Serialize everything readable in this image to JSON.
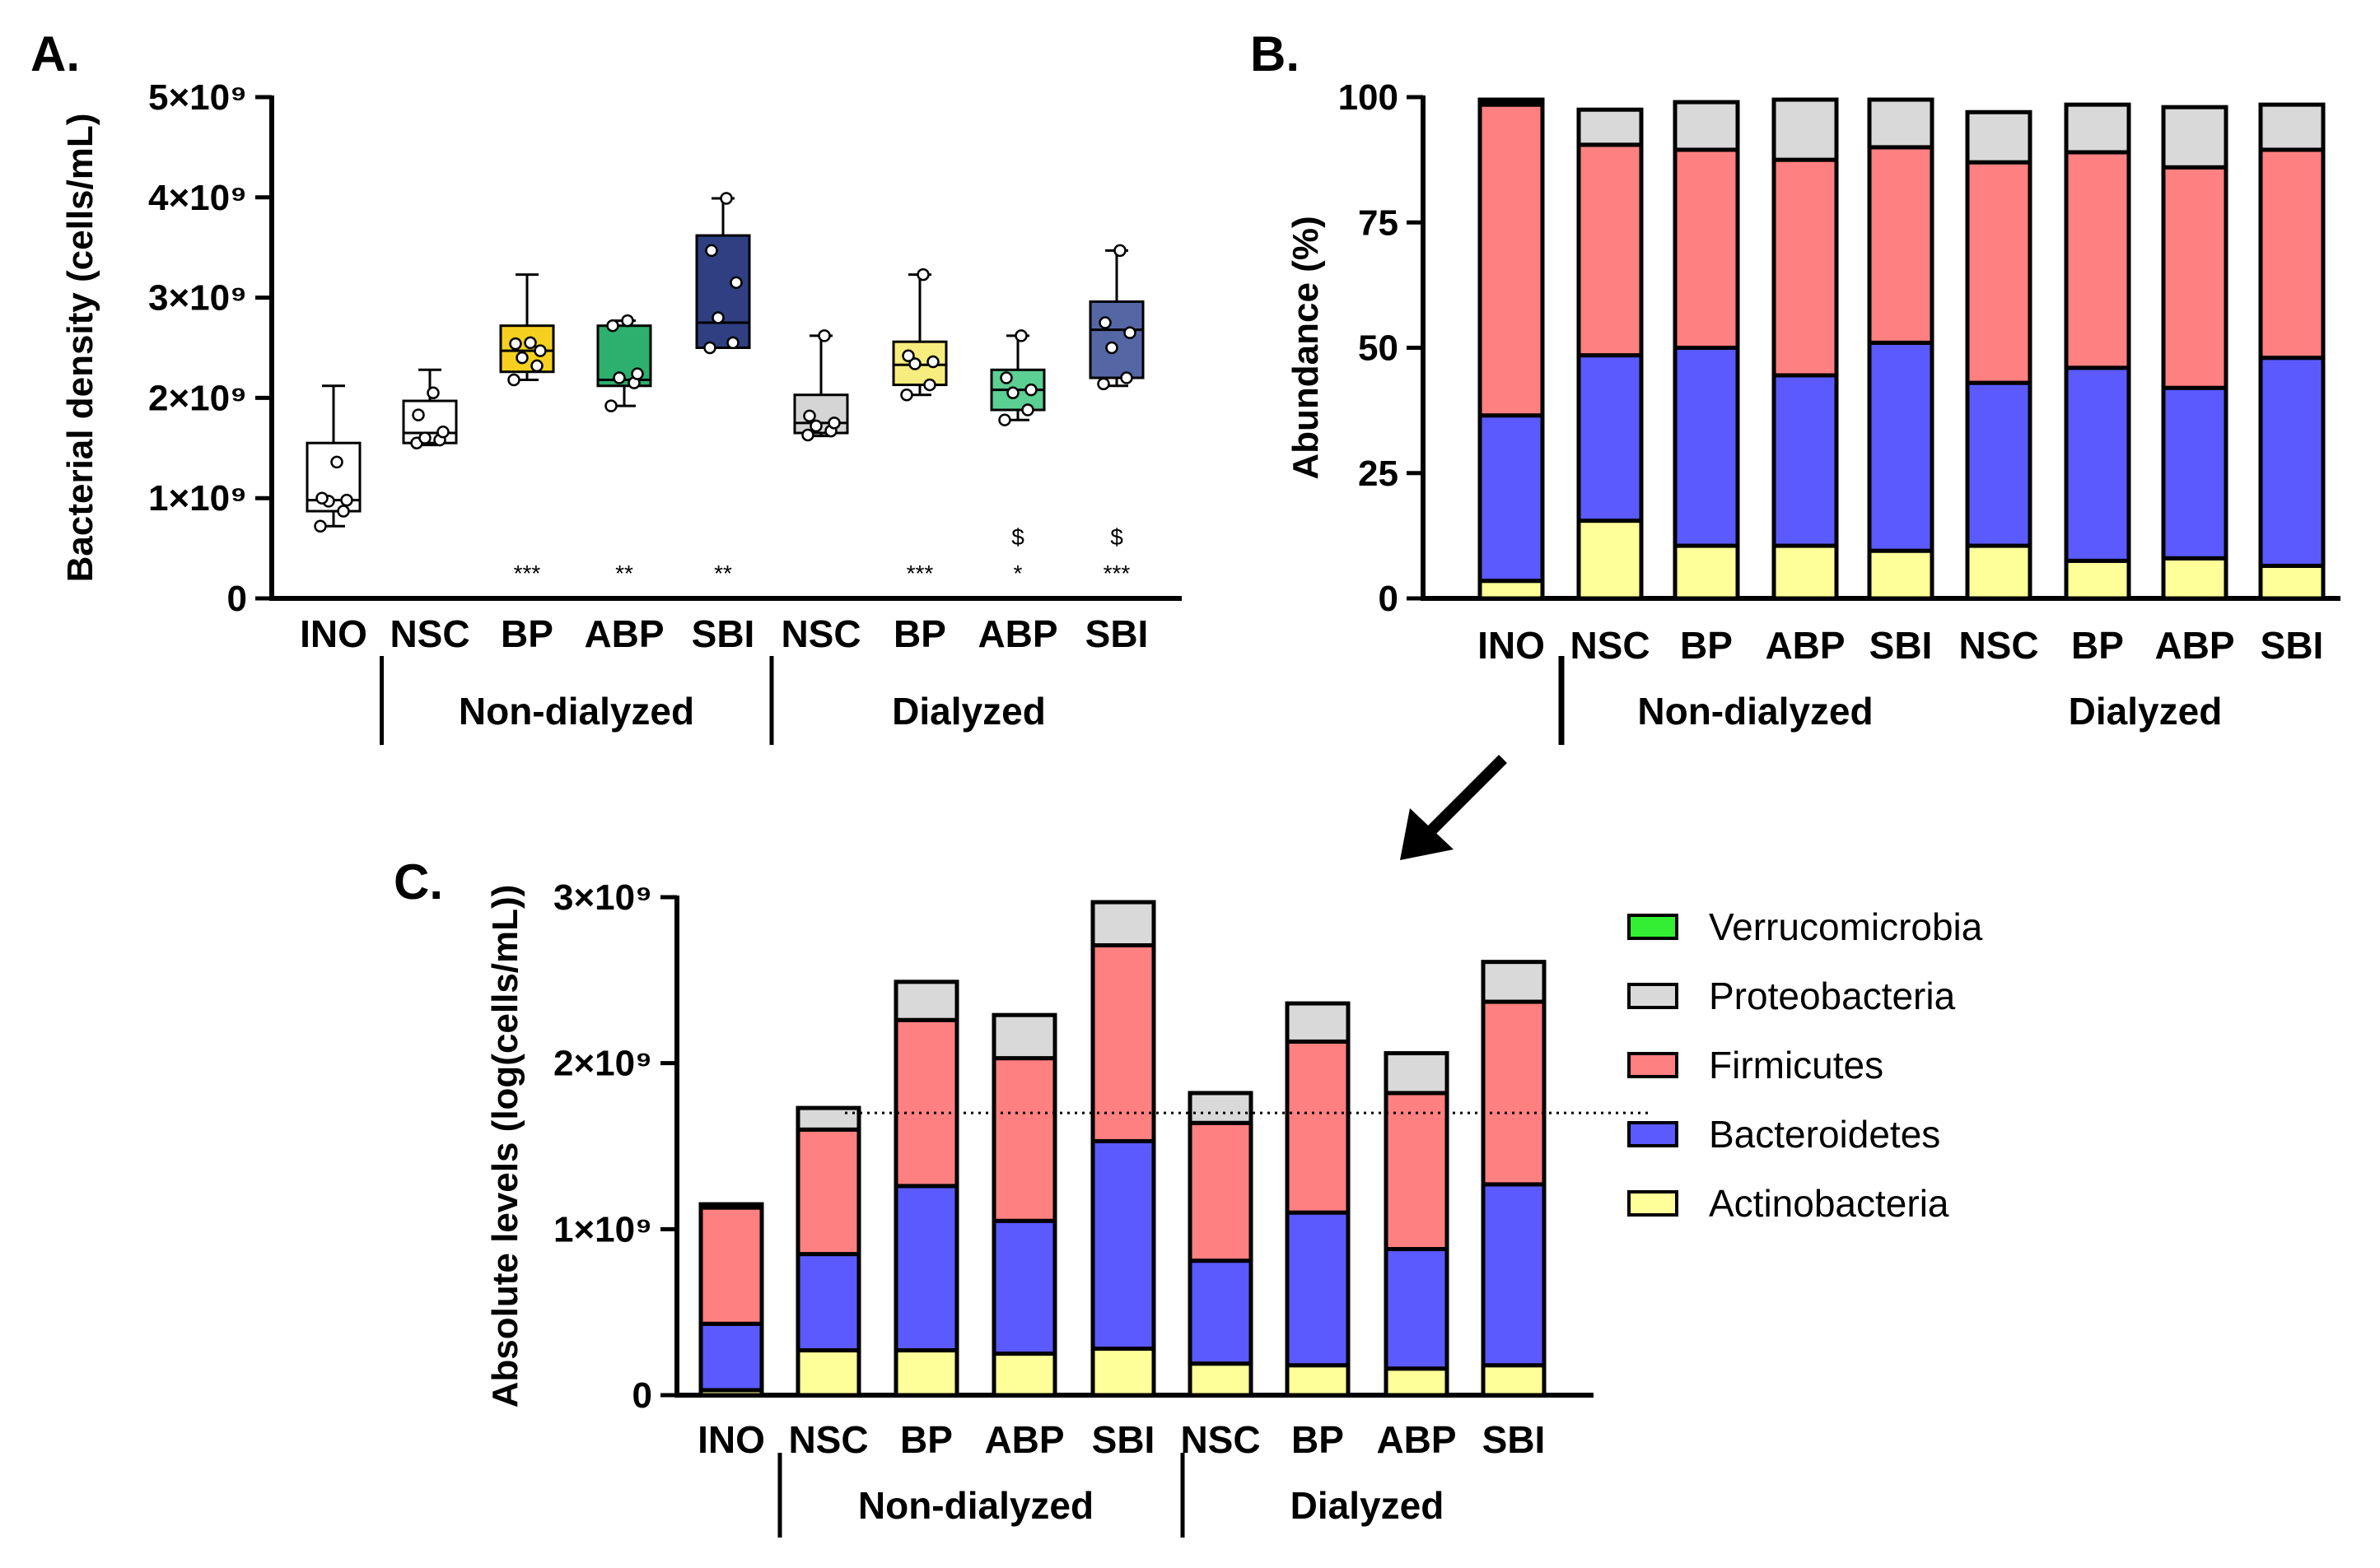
{
  "panel_labels": [
    "A.",
    "B.",
    "C."
  ],
  "colors": {
    "Verrucomicrobia": "#33ee33",
    "Proteobacteria": "#d9d9d9",
    "Firmicutes": "#ff8080",
    "Bacteroidetes": "#5a5aff",
    "Actinobacteria": "#ffff99"
  },
  "chart_data": [
    {
      "panel": "A.",
      "type": "box",
      "ylabel": "Bacterial density (cells/mL)",
      "ylim": [
        0,
        5000000000
      ],
      "yticks": [
        {
          "value": 0,
          "label": "0"
        },
        {
          "value": 1000000000,
          "label": "1×10⁹"
        },
        {
          "value": 2000000000,
          "label": "2×10⁹"
        },
        {
          "value": 3000000000,
          "label": "3×10⁹"
        },
        {
          "value": 4000000000,
          "label": "4×10⁹"
        },
        {
          "value": 5000000000,
          "label": "5×10⁹"
        }
      ],
      "categories": [
        "INO",
        "NSC",
        "BP",
        "ABP",
        "SBI",
        "NSC",
        "BP",
        "ABP",
        "SBI"
      ],
      "groups": [
        {
          "label": "Non-dialyzed",
          "from": 1,
          "to": 4
        },
        {
          "label": "Dialyzed",
          "from": 5,
          "to": 8
        }
      ],
      "boxes": [
        {
          "color": "#ffffff",
          "min": 0.72,
          "q1": 0.87,
          "median": 0.98,
          "q3": 1.55,
          "max": 2.12,
          "points": [
            0.72,
            0.87,
            0.97,
            0.98,
            1.0,
            1.36
          ]
        },
        {
          "color": "#ffffff",
          "min": 1.53,
          "q1": 1.55,
          "median": 1.65,
          "q3": 1.97,
          "max": 2.28,
          "points": [
            1.55,
            1.58,
            1.6,
            1.66,
            1.83,
            2.05
          ]
        },
        {
          "color": "#f5d020",
          "min": 2.18,
          "q1": 2.26,
          "median": 2.47,
          "q3": 2.72,
          "max": 3.23,
          "points": [
            2.18,
            2.32,
            2.4,
            2.47,
            2.54,
            2.55
          ]
        },
        {
          "color": "#2daf6e",
          "min": 1.92,
          "q1": 2.12,
          "median": 2.18,
          "q3": 2.72,
          "max": 2.77,
          "points": [
            1.92,
            2.15,
            2.2,
            2.24,
            2.72,
            2.77
          ]
        },
        {
          "color": "#2f3f82",
          "min": 2.5,
          "q1": 2.5,
          "median": 2.75,
          "q3": 3.62,
          "max": 3.99,
          "points": [
            2.5,
            2.55,
            2.8,
            3.15,
            3.47,
            3.99
          ]
        },
        {
          "color": "#d5d5d5",
          "min": 1.62,
          "q1": 1.65,
          "median": 1.75,
          "q3": 2.03,
          "max": 2.62,
          "points": [
            1.63,
            1.67,
            1.72,
            1.75,
            1.82,
            2.62
          ]
        },
        {
          "color": "#f7ec7e",
          "min": 2.03,
          "q1": 2.13,
          "median": 2.33,
          "q3": 2.56,
          "max": 3.23,
          "points": [
            2.03,
            2.13,
            2.34,
            2.36,
            2.42,
            3.23
          ]
        },
        {
          "color": "#5ccf92",
          "min": 1.78,
          "q1": 1.88,
          "median": 2.08,
          "q3": 2.28,
          "max": 2.62,
          "points": [
            1.78,
            1.88,
            2.05,
            2.08,
            2.2,
            2.62
          ]
        },
        {
          "color": "#5566a5",
          "min": 2.12,
          "q1": 2.2,
          "median": 2.68,
          "q3": 2.96,
          "max": 3.47,
          "points": [
            2.14,
            2.2,
            2.5,
            2.65,
            2.75,
            3.47
          ]
        }
      ],
      "significance": [
        "",
        "",
        "***",
        "**",
        "**",
        "",
        "***",
        "*",
        "***"
      ],
      "significance_dollar": [
        "",
        "",
        "",
        "",
        "",
        "",
        "",
        "$",
        "$"
      ]
    },
    {
      "panel": "B.",
      "type": "bar",
      "stacked": true,
      "ylabel": "Abundance (%)",
      "ylim": [
        0,
        100
      ],
      "yticks": [
        0,
        25,
        50,
        75,
        100
      ],
      "categories": [
        "INO",
        "NSC",
        "BP",
        "ABP",
        "SBI",
        "NSC",
        "BP",
        "ABP",
        "SBI"
      ],
      "groups": [
        {
          "label": "Non-dialyzed",
          "from": 1,
          "to": 4
        },
        {
          "label": "Dialyzed",
          "from": 5,
          "to": 8
        }
      ],
      "series": [
        {
          "name": "Actinobacteria",
          "values": [
            3.5,
            15.5,
            10.5,
            10.5,
            9.5,
            10.5,
            7.5,
            8,
            6.5
          ]
        },
        {
          "name": "Bacteroidetes",
          "values": [
            33,
            33,
            39.5,
            34,
            41.5,
            32.5,
            38.5,
            34,
            41.5
          ]
        },
        {
          "name": "Firmicutes",
          "values": [
            62,
            42,
            39.5,
            43,
            39,
            44,
            43,
            44,
            41.5
          ]
        },
        {
          "name": "Proteobacteria",
          "values": [
            0.5,
            7,
            9.5,
            12,
            9.5,
            10,
            9.5,
            12,
            9
          ]
        },
        {
          "name": "Verrucomicrobia",
          "values": [
            0.5,
            0,
            0,
            0,
            0,
            0,
            0,
            0,
            0
          ]
        }
      ]
    },
    {
      "panel": "C.",
      "type": "bar",
      "stacked": true,
      "ylabel": "Absolute levels (log(cells/mL))",
      "ylim": [
        0,
        3000000000
      ],
      "yticks": [
        {
          "value": 0,
          "label": "0"
        },
        {
          "value": 1000000000,
          "label": "1×10⁹"
        },
        {
          "value": 2000000000,
          "label": "2×10⁹"
        },
        {
          "value": 3000000000,
          "label": "3×10⁹"
        }
      ],
      "categories": [
        "INO",
        "NSC",
        "BP",
        "ABP",
        "SBI",
        "NSC",
        "BP",
        "ABP",
        "SBI"
      ],
      "groups": [
        {
          "label": "Non-dialyzed",
          "from": 1,
          "to": 4
        },
        {
          "label": "Dialyzed",
          "from": 5,
          "to": 8
        }
      ],
      "reference_line": {
        "value": 1700000000,
        "style": "dotted",
        "from": 1,
        "to": 8
      },
      "series": [
        {
          "name": "Actinobacteria",
          "values": [
            0.03,
            0.27,
            0.27,
            0.25,
            0.28,
            0.19,
            0.18,
            0.16,
            0.18
          ]
        },
        {
          "name": "Bacteroidetes",
          "values": [
            0.4,
            0.58,
            0.99,
            0.8,
            1.25,
            0.62,
            0.92,
            0.72,
            1.09
          ]
        },
        {
          "name": "Firmicutes",
          "values": [
            0.7,
            0.75,
            1.0,
            0.98,
            1.18,
            0.83,
            1.03,
            0.94,
            1.1
          ]
        },
        {
          "name": "Proteobacteria",
          "values": [
            0.02,
            0.13,
            0.23,
            0.26,
            0.26,
            0.18,
            0.23,
            0.24,
            0.24
          ]
        },
        {
          "name": "Verrucomicrobia",
          "values": [
            0,
            0,
            0,
            0,
            0,
            0,
            0,
            0,
            0
          ]
        }
      ]
    }
  ],
  "legend": [
    "Verrucomicrobia",
    "Proteobacteria",
    "Firmicutes",
    "Bacteroidetes",
    "Actinobacteria"
  ]
}
